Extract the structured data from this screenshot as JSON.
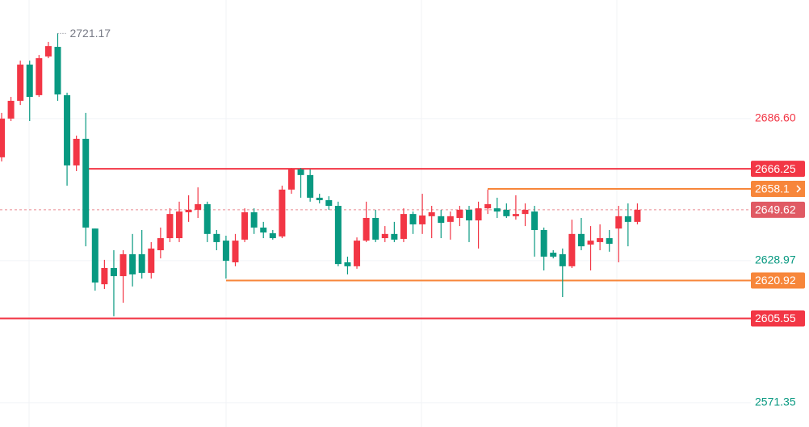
{
  "chart_data": {
    "type": "candlestick",
    "up_color": "#f23645",
    "down_color": "#089981",
    "ylim": [
      2561.5,
      2734.7
    ],
    "yticks": [
      {
        "value": 2686.6,
        "label": "2686.60"
      },
      2628.97,
      2571.35
    ],
    "grid": true,
    "high_label": 2721.17,
    "series": {
      "open": [
        2670.9,
        2686.6,
        2693.8,
        2708.5,
        2696.1,
        2711.8,
        2715.7,
        2696.1,
        2667.6,
        2678.4,
        2642.0,
        2619.4,
        2626.0,
        2622.7,
        2631.6,
        2631.6,
        2624.0,
        2633.2,
        2638.1,
        2638.1,
        2648.6,
        2649.6,
        2651.9,
        2639.8,
        2637.1,
        2628.3,
        2637.5,
        2648.6,
        2642.4,
        2640.1,
        2638.8,
        2657.8,
        2666.0,
        2663.7,
        2654.5,
        2653.5,
        2651.2,
        2628.3,
        2626.7,
        2637.1,
        2646.3,
        2638.1,
        2639.8,
        2637.8,
        2647.9,
        2643.7,
        2647.0,
        2647.0,
        2644.7,
        2646.3,
        2649.6,
        2645.3,
        2650.2,
        2650.2,
        2649.6,
        2647.0,
        2647.9,
        2648.9,
        2641.4,
        2632.2,
        2631.6,
        2626.7,
        2639.8,
        2635.5,
        2636.5,
        2638.1,
        2642.0,
        2647.0,
        2644.7
      ],
      "high": [
        2688.9,
        2695.4,
        2710.1,
        2710.1,
        2712.4,
        2717.7,
        2721.17,
        2697.1,
        2679.7,
        2688.9,
        2642.0,
        2629.3,
        2633.2,
        2633.2,
        2639.8,
        2641.4,
        2636.5,
        2642.4,
        2650.2,
        2652.9,
        2655.5,
        2658.7,
        2652.9,
        2641.4,
        2639.1,
        2639.8,
        2650.2,
        2650.2,
        2644.7,
        2641.4,
        2659.4,
        2666.6,
        2666.6,
        2666.0,
        2656.1,
        2655.1,
        2652.9,
        2630.6,
        2638.4,
        2652.9,
        2649.6,
        2643.0,
        2644.7,
        2650.2,
        2648.9,
        2656.1,
        2651.2,
        2649.6,
        2648.9,
        2651.2,
        2651.2,
        2652.9,
        2657.8,
        2654.5,
        2652.2,
        2655.5,
        2652.2,
        2651.2,
        2642.4,
        2633.2,
        2633.9,
        2645.6,
        2646.3,
        2643.0,
        2643.7,
        2641.4,
        2651.2,
        2652.2,
        2652.2
      ],
      "low": [
        2669.2,
        2685.6,
        2692.1,
        2685.6,
        2695.4,
        2711.1,
        2693.8,
        2659.4,
        2665.3,
        2634.8,
        2616.8,
        2617.5,
        2606.4,
        2611.9,
        2618.5,
        2621.7,
        2621.7,
        2629.9,
        2636.5,
        2636.5,
        2644.7,
        2646.3,
        2636.5,
        2633.2,
        2621.7,
        2626.7,
        2636.5,
        2639.8,
        2638.1,
        2637.5,
        2638.1,
        2656.1,
        2654.5,
        2652.9,
        2652.2,
        2649.6,
        2626.7,
        2623.4,
        2625.7,
        2636.5,
        2636.5,
        2636.5,
        2636.5,
        2636.5,
        2639.8,
        2639.8,
        2638.1,
        2638.1,
        2637.5,
        2643.0,
        2636.5,
        2633.9,
        2647.9,
        2646.3,
        2646.3,
        2645.6,
        2643.0,
        2630.6,
        2625.0,
        2629.9,
        2614.2,
        2626.0,
        2633.2,
        2625.0,
        2633.2,
        2632.6,
        2628.3,
        2634.8,
        2643.7
      ],
      "close": [
        2686.6,
        2693.8,
        2708.5,
        2695.4,
        2711.1,
        2716.0,
        2696.4,
        2667.6,
        2678.4,
        2642.4,
        2620.1,
        2626.0,
        2622.7,
        2631.6,
        2623.4,
        2624.0,
        2633.9,
        2638.1,
        2647.9,
        2648.9,
        2649.6,
        2651.9,
        2639.8,
        2636.5,
        2628.9,
        2637.1,
        2648.6,
        2642.4,
        2640.4,
        2638.1,
        2657.8,
        2666.0,
        2663.7,
        2654.5,
        2653.5,
        2651.2,
        2627.6,
        2626.7,
        2637.1,
        2646.3,
        2637.5,
        2639.8,
        2637.5,
        2647.9,
        2643.7,
        2647.3,
        2648.6,
        2644.3,
        2647.0,
        2649.6,
        2645.3,
        2650.2,
        2651.9,
        2648.9,
        2647.0,
        2647.9,
        2649.6,
        2641.4,
        2630.6,
        2630.6,
        2626.7,
        2639.8,
        2634.8,
        2637.1,
        2638.1,
        2635.8,
        2647.0,
        2644.7,
        2649.6
      ]
    },
    "levels": [
      {
        "price": 2666.25,
        "color": "#f23645"
      },
      {
        "price": 2658.1,
        "color": "#f7863a"
      },
      {
        "price": 2649.62,
        "color": "#e05a64",
        "style": "dashed"
      },
      {
        "price": 2620.92,
        "color": "#f7863a"
      },
      {
        "price": 2605.55,
        "color": "#f23645"
      }
    ]
  }
}
